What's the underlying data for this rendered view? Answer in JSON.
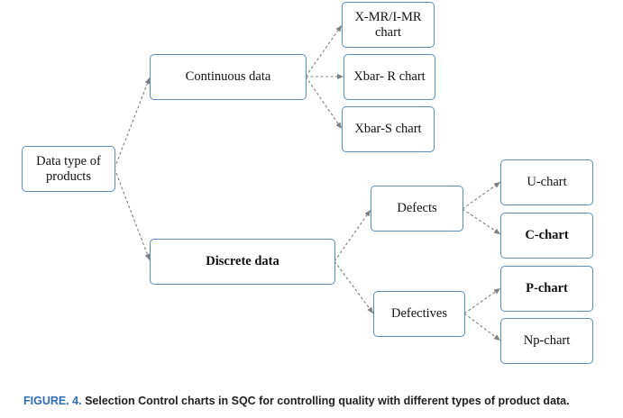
{
  "nodes": {
    "root": "Data type of products",
    "continuous": "Continuous data",
    "discrete": "Discrete data",
    "xmr": "X-MR/I-MR chart",
    "xbar_r": "Xbar- R chart",
    "xbar_s": "Xbar-S chart",
    "defects": "Defects",
    "defectives": "Defectives",
    "u_chart": "U-chart",
    "c_chart": "C-chart",
    "p_chart": "P-chart",
    "np_chart": "Np-chart"
  },
  "caption": {
    "label": "FIGURE. 4.",
    "text": "Selection Control charts in SQC for controlling quality with different types of product data."
  },
  "colors": {
    "node_border": "#5b8fbf",
    "edge": "#7f7f7f",
    "caption_label": "#2e6db4"
  }
}
